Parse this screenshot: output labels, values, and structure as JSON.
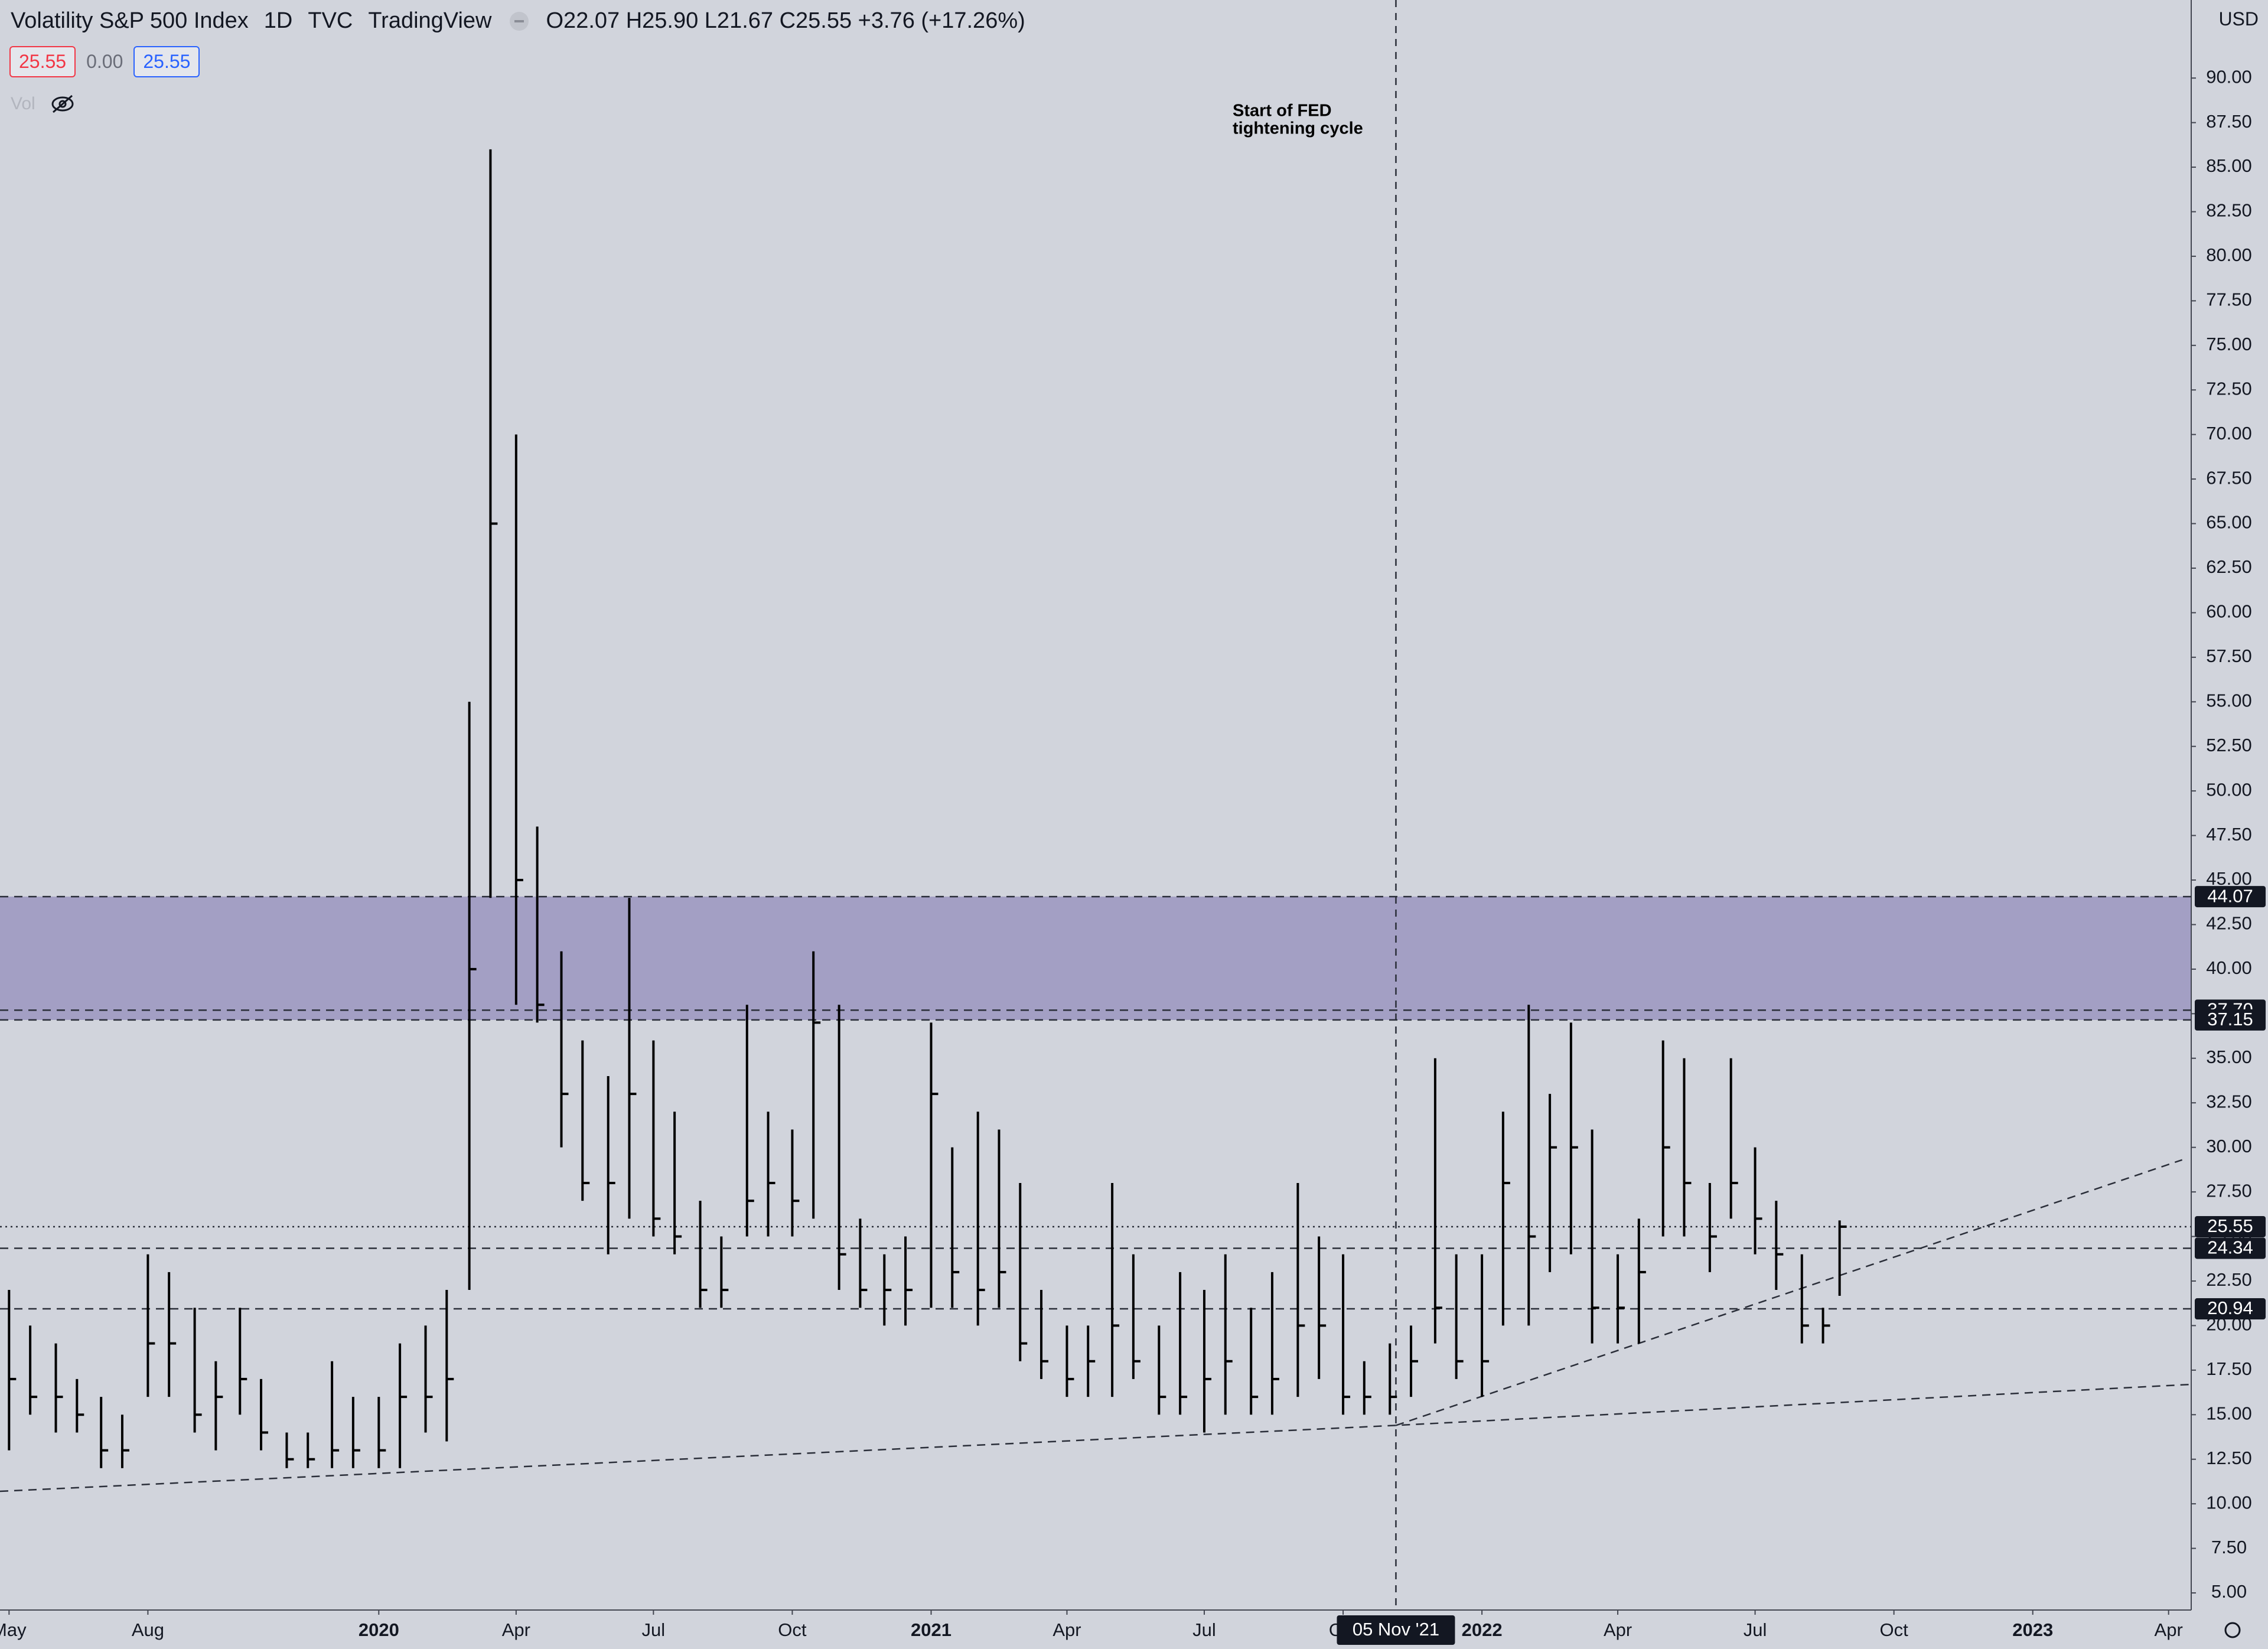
{
  "header": {
    "interval": "1D",
    "exchange": "TVC",
    "source": "TradingView",
    "ohlc_text": "O22.07 H25.90 L21.67 C25.55 +3.76 (+17.26%)",
    "price_boxes": [
      "25.55",
      "0.00",
      "25.55"
    ],
    "volume": "Vol",
    "currency": "USD"
  },
  "chart_data": {
    "type": "ohlc",
    "title": "Volatility S&P 500 Index",
    "color": "#000000",
    "background": "#d1d4dc",
    "annotation": [
      "Start of FED",
      "tightening cycle"
    ],
    "crosshair": {
      "x": "2021-11-05",
      "label": "05 Nov '21"
    },
    "xlim": [
      "2019-04-25",
      "2023-04-16"
    ],
    "xticks": [
      {
        "value": "2019-05-01",
        "label": "May"
      },
      {
        "value": "2019-08-01",
        "label": "Aug"
      },
      {
        "value": "2020-01-01",
        "label": "2020"
      },
      {
        "value": "2020-04-01",
        "label": "Apr"
      },
      {
        "value": "2020-07-01",
        "label": "Jul"
      },
      {
        "value": "2020-10-01",
        "label": "Oct"
      },
      {
        "value": "2021-01-01",
        "label": "2021"
      },
      {
        "value": "2021-04-01",
        "label": "Apr"
      },
      {
        "value": "2021-07-01",
        "label": "Jul"
      },
      {
        "value": "2021-10-01",
        "label": "Oct"
      },
      {
        "value": "2022-01-01",
        "label": "2022"
      },
      {
        "value": "2022-04-01",
        "label": "Apr"
      },
      {
        "value": "2022-07-01",
        "label": "Jul"
      },
      {
        "value": "2022-10-01",
        "label": "Oct"
      },
      {
        "value": "2023-01-01",
        "label": "2023"
      },
      {
        "value": "2023-04-01",
        "label": "Apr"
      }
    ],
    "ylim": [
      4.04,
      94.38
    ],
    "yticks": [
      {
        "value": 5,
        "label": "5.00"
      },
      {
        "value": 7.5,
        "label": "7.50"
      },
      {
        "value": 10,
        "label": "10.00"
      },
      {
        "value": 12.5,
        "label": "12.50"
      },
      {
        "value": 15,
        "label": "15.00"
      },
      {
        "value": 17.5,
        "label": "17.50"
      },
      {
        "value": 20,
        "label": "20.00"
      },
      {
        "value": 22.5,
        "label": "22.50"
      },
      {
        "value": 25,
        "label": "25.00"
      },
      {
        "value": 27.5,
        "label": "27.50"
      },
      {
        "value": 30,
        "label": "30.00"
      },
      {
        "value": 32.5,
        "label": "32.50"
      },
      {
        "value": 35,
        "label": "35.00"
      },
      {
        "value": 37.5,
        "label": "37.50"
      },
      {
        "value": 40,
        "label": "40.00"
      },
      {
        "value": 42.5,
        "label": "42.50"
      },
      {
        "value": 45,
        "label": "45.00"
      },
      {
        "value": 47.5,
        "label": "47.50"
      },
      {
        "value": 50,
        "label": "50.00"
      },
      {
        "value": 52.5,
        "label": "52.50"
      },
      {
        "value": 55,
        "label": "55.00"
      },
      {
        "value": 57.5,
        "label": "57.50"
      },
      {
        "value": 60,
        "label": "60.00"
      },
      {
        "value": 62.5,
        "label": "62.50"
      },
      {
        "value": 65,
        "label": "65.00"
      },
      {
        "value": 67.5,
        "label": "67.50"
      },
      {
        "value": 70,
        "label": "70.00"
      },
      {
        "value": 72.5,
        "label": "72.50"
      },
      {
        "value": 75,
        "label": "75.00"
      },
      {
        "value": 77.5,
        "label": "77.50"
      },
      {
        "value": 80,
        "label": "80.00"
      },
      {
        "value": 82.5,
        "label": "82.50"
      },
      {
        "value": 85,
        "label": "85.00"
      },
      {
        "value": 87.5,
        "label": "87.50"
      },
      {
        "value": 90,
        "label": "90.00"
      }
    ],
    "zone": {
      "from": 37.15,
      "to": 44.07,
      "color": "#a39fc4"
    },
    "levels": [
      {
        "value": 44.07,
        "label": "44.07",
        "style": "dashed"
      },
      {
        "value": 37.7,
        "label": "37.70",
        "style": "dashed"
      },
      {
        "value": 37.15,
        "label": "37.15",
        "style": "dashed"
      },
      {
        "value": 25.55,
        "label": "25.55",
        "style": "dotted"
      },
      {
        "value": 24.34,
        "label": "24.34",
        "style": "dashed"
      },
      {
        "value": 20.94,
        "label": "20.94",
        "style": "dashed"
      }
    ],
    "trendlines": [
      {
        "x": [
          "2019-04-25",
          "2021-11-05",
          "2023-04-16"
        ],
        "values": [
          10.7,
          14.4,
          16.7
        ]
      },
      {
        "x": [
          "2021-11-05",
          "2023-04-10"
        ],
        "values": [
          14.4,
          29.3
        ]
      }
    ],
    "x": [
      "2019-05-01",
      "2019-05-15",
      "2019-06-01",
      "2019-06-15",
      "2019-07-01",
      "2019-07-15",
      "2019-08-01",
      "2019-08-15",
      "2019-09-01",
      "2019-09-15",
      "2019-10-01",
      "2019-10-15",
      "2019-11-01",
      "2019-11-15",
      "2019-12-01",
      "2019-12-15",
      "2020-01-01",
      "2020-01-15",
      "2020-02-01",
      "2020-02-15",
      "2020-03-01",
      "2020-03-15",
      "2020-04-01",
      "2020-04-15",
      "2020-05-01",
      "2020-05-15",
      "2020-06-01",
      "2020-06-15",
      "2020-07-01",
      "2020-07-15",
      "2020-08-01",
      "2020-08-15",
      "2020-09-01",
      "2020-09-15",
      "2020-10-01",
      "2020-10-15",
      "2020-11-01",
      "2020-11-15",
      "2020-12-01",
      "2020-12-15",
      "2021-01-01",
      "2021-01-15",
      "2021-02-01",
      "2021-02-15",
      "2021-03-01",
      "2021-03-15",
      "2021-04-01",
      "2021-04-15",
      "2021-05-01",
      "2021-05-15",
      "2021-06-01",
      "2021-06-15",
      "2021-07-01",
      "2021-07-15",
      "2021-08-01",
      "2021-08-15",
      "2021-09-01",
      "2021-09-15",
      "2021-10-01",
      "2021-10-15",
      "2021-11-01",
      "2021-11-15",
      "2021-12-01",
      "2021-12-15",
      "2022-01-01",
      "2022-01-15",
      "2022-02-01",
      "2022-02-15",
      "2022-03-01",
      "2022-03-15",
      "2022-04-01",
      "2022-04-15",
      "2022-05-01",
      "2022-05-15",
      "2022-06-01",
      "2022-06-15",
      "2022-07-01",
      "2022-07-15",
      "2022-08-01",
      "2022-08-15",
      "2022-08-26"
    ],
    "high": [
      22,
      20,
      19,
      17,
      16,
      15,
      24,
      23,
      21,
      18,
      21,
      17,
      14,
      14,
      18,
      16,
      16,
      19,
      20,
      22,
      55,
      86,
      70,
      48,
      41,
      36,
      34,
      44,
      36,
      32,
      27,
      25,
      38,
      32,
      31,
      41,
      38,
      26,
      24,
      25,
      37,
      30,
      32,
      31,
      28,
      22,
      20,
      20,
      28,
      24,
      20,
      23,
      22,
      24,
      21,
      23,
      28,
      25,
      24,
      18,
      19,
      20,
      35,
      24,
      24,
      32,
      38,
      33,
      37,
      31,
      24,
      26,
      36,
      35,
      28,
      35,
      30,
      27,
      24,
      21,
      25.9
    ],
    "low": [
      13,
      15,
      14,
      14,
      12,
      12,
      16,
      16,
      14,
      13,
      15,
      13,
      12,
      12,
      12,
      12,
      12,
      12,
      14,
      13.5,
      22,
      44,
      38,
      37,
      30,
      27,
      24,
      26,
      25,
      24,
      21,
      21,
      25,
      25,
      25,
      26,
      22,
      21,
      20,
      20,
      21,
      21,
      20,
      21,
      18,
      17,
      16,
      16,
      16,
      17,
      15,
      15,
      14,
      15,
      15,
      15,
      16,
      17,
      15,
      15,
      15,
      16,
      19,
      17,
      16,
      20,
      20,
      23,
      24,
      19,
      19,
      19,
      25,
      25,
      23,
      26,
      24,
      22,
      19,
      19,
      21.67
    ],
    "close": [
      17,
      16,
      16,
      15,
      13,
      13,
      19,
      19,
      15,
      16,
      17,
      14,
      12.5,
      12.5,
      13,
      13,
      13,
      16,
      16,
      17,
      40,
      65,
      45,
      38,
      33,
      28,
      28,
      33,
      26,
      25,
      22,
      22,
      27,
      28,
      27,
      37,
      24,
      22,
      22,
      22,
      33,
      23,
      22,
      23,
      19,
      18,
      17,
      18,
      20,
      18,
      16,
      16,
      17,
      18,
      16,
      17,
      20,
      20,
      16,
      16,
      16,
      18,
      21,
      18,
      18,
      28,
      25,
      30,
      30,
      21,
      21,
      23,
      30,
      28,
      25,
      28,
      26,
      24,
      20,
      20,
      25.55
    ]
  }
}
